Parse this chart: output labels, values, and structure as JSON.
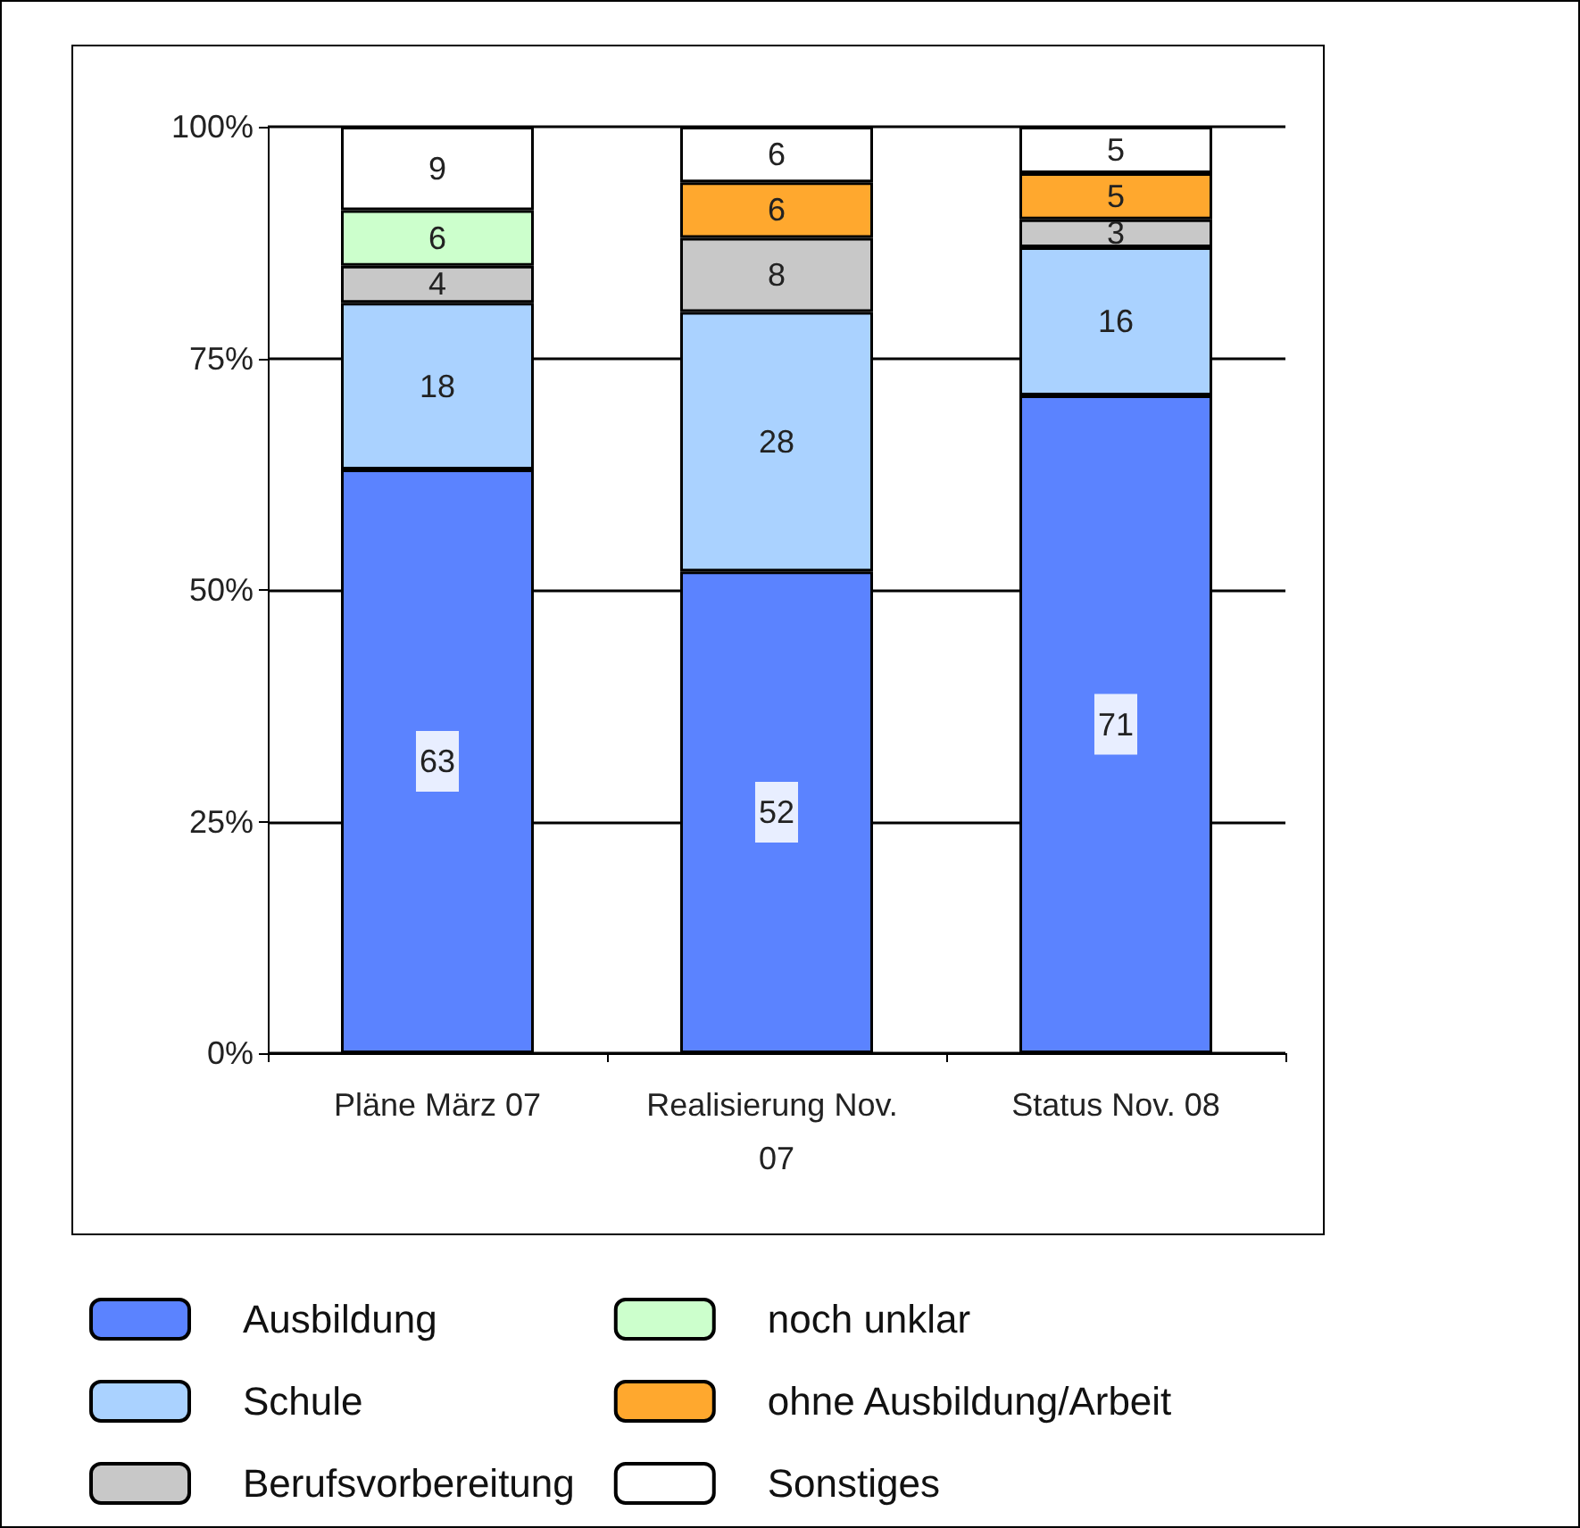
{
  "chart_data": {
    "type": "bar",
    "stacked": true,
    "categories": [
      "Pläne März 07",
      "Realisierung Nov. 07",
      "Status Nov. 08"
    ],
    "series": [
      {
        "name": "Ausbildung",
        "color": "#5b83ff",
        "values": [
          63,
          52,
          71
        ]
      },
      {
        "name": "Schule",
        "color": "#aad2ff",
        "values": [
          18,
          28,
          16
        ]
      },
      {
        "name": "Berufsvorbereitung",
        "color": "#c8c8c8",
        "values": [
          4,
          8,
          3
        ]
      },
      {
        "name": "noch unklar",
        "color": "#ccffcc",
        "values": [
          6,
          null,
          null
        ]
      },
      {
        "name": "ohne Ausbildung/Arbeit",
        "color": "#ffa82e",
        "values": [
          null,
          6,
          5
        ]
      },
      {
        "name": "Sonstiges",
        "color": "#ffffff",
        "values": [
          9,
          6,
          5
        ]
      }
    ],
    "ylim": [
      0,
      100
    ],
    "yticks": [
      {
        "value": 0,
        "label": "0%"
      },
      {
        "value": 25,
        "label": "25%"
      },
      {
        "value": 50,
        "label": "50%"
      },
      {
        "value": 75,
        "label": "75%"
      },
      {
        "value": 100,
        "label": "100%"
      }
    ],
    "grid": "y",
    "legend": "bottom",
    "data_labels": true
  }
}
